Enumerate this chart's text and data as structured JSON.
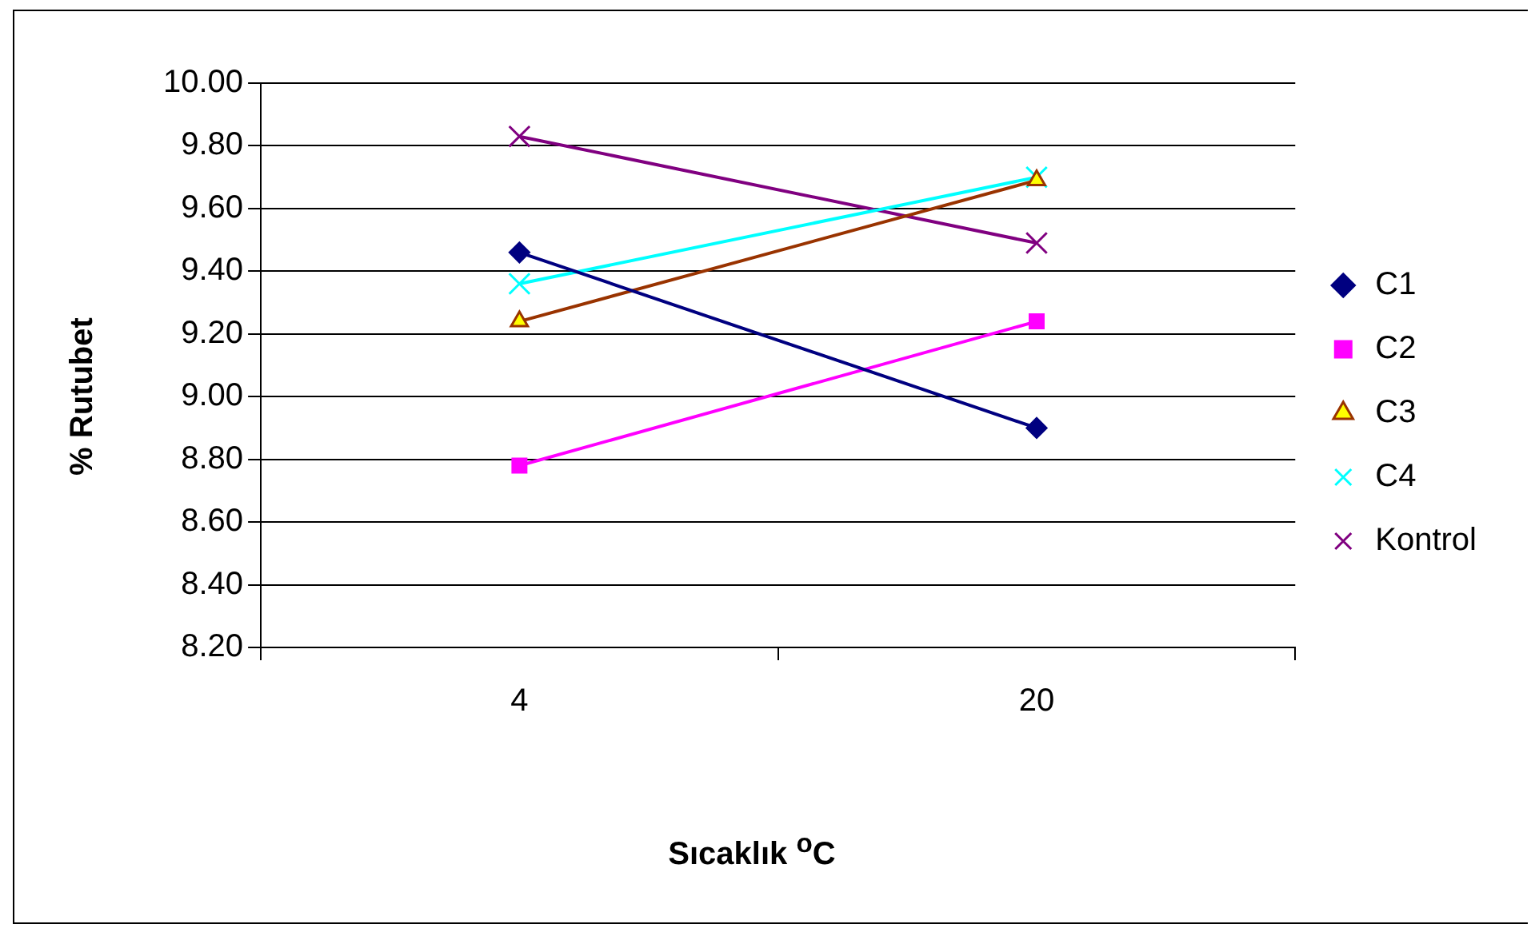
{
  "chart_data": {
    "type": "line",
    "xlabel": "Sıcaklık $^{o}$C",
    "ylabel": "% Rutubet",
    "categories": [
      "4",
      "20"
    ],
    "series": [
      {
        "name": "C1",
        "color": "#000080",
        "marker": "diamond",
        "values": [
          9.46,
          8.9
        ]
      },
      {
        "name": "C2",
        "color": "#ff00ff",
        "marker": "square",
        "values": [
          8.78,
          9.24
        ]
      },
      {
        "name": "C3",
        "color": "#993300",
        "marker": "triangle",
        "values": [
          9.24,
          9.69
        ]
      },
      {
        "name": "C4",
        "color": "#00ffff",
        "marker": "cross",
        "values": [
          9.36,
          9.7
        ]
      },
      {
        "name": "Kontrol",
        "color": "#800080",
        "marker": "cross",
        "values": [
          9.83,
          9.49
        ]
      }
    ],
    "ylim": [
      8.2,
      10
    ],
    "yticks": [
      {
        "value": 8.2,
        "label": "8.20"
      },
      {
        "value": 8.4,
        "label": "8.40"
      },
      {
        "value": 8.6,
        "label": "8.60"
      },
      {
        "value": 8.8,
        "label": "8.80"
      },
      {
        "value": 9,
        "label": "9.00"
      },
      {
        "value": 9.2,
        "label": "9.20"
      },
      {
        "value": 9.4,
        "label": "9.40"
      },
      {
        "value": 9.6,
        "label": "9.60"
      },
      {
        "value": 9.8,
        "label": "9.80"
      },
      {
        "value": 10,
        "label": "10.00"
      }
    ],
    "grid": "y",
    "legend": "right"
  }
}
